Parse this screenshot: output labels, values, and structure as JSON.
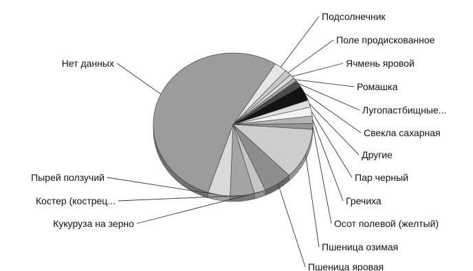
{
  "chart_data": {
    "type": "pie",
    "title": "",
    "slices": [
      {
        "label": "Подсолнечник",
        "value": 2.6,
        "color": "#e6e6e6"
      },
      {
        "label": "Поле продискованное",
        "value": 1.3,
        "color": "#c8c8c8"
      },
      {
        "label": "Ячмень яровой",
        "value": 1.0,
        "color": "#dcdcdc"
      },
      {
        "label": "Ромашка",
        "value": 0.8,
        "color": "#a8a8a8"
      },
      {
        "label": "Лугопастбищные...",
        "value": 1.5,
        "color": "#4a4a4a"
      },
      {
        "label": "Свекла сахарная",
        "value": 3.4,
        "color": "#141414"
      },
      {
        "label": "Другие",
        "value": 1.6,
        "color": "#dedede"
      },
      {
        "label": "Пар черный",
        "value": 2.0,
        "color": "#f2f2f2"
      },
      {
        "label": "Гречиха",
        "value": 1.7,
        "color": "#b4b4b4"
      },
      {
        "label": "Осот полевой (желтый)",
        "value": 1.3,
        "color": "#959595"
      },
      {
        "label": "Пшеница озимая",
        "value": 11.5,
        "color": "#cdcdcd"
      },
      {
        "label": "Пшеница яровая",
        "value": 5.8,
        "color": "#8e8e8e"
      },
      {
        "label": "Кукуруза на зерно",
        "value": 2.3,
        "color": "#c6c6c6"
      },
      {
        "label": "Костер (кострец...",
        "value": 4.9,
        "color": "#a4a4a4"
      },
      {
        "label": "Пырей ползучий",
        "value": 4.5,
        "color": "#dadada"
      },
      {
        "label": "Нет данных",
        "value": 53.8,
        "color": "#9c9c9c"
      }
    ],
    "legend": "none",
    "style": "3d-tilted"
  }
}
